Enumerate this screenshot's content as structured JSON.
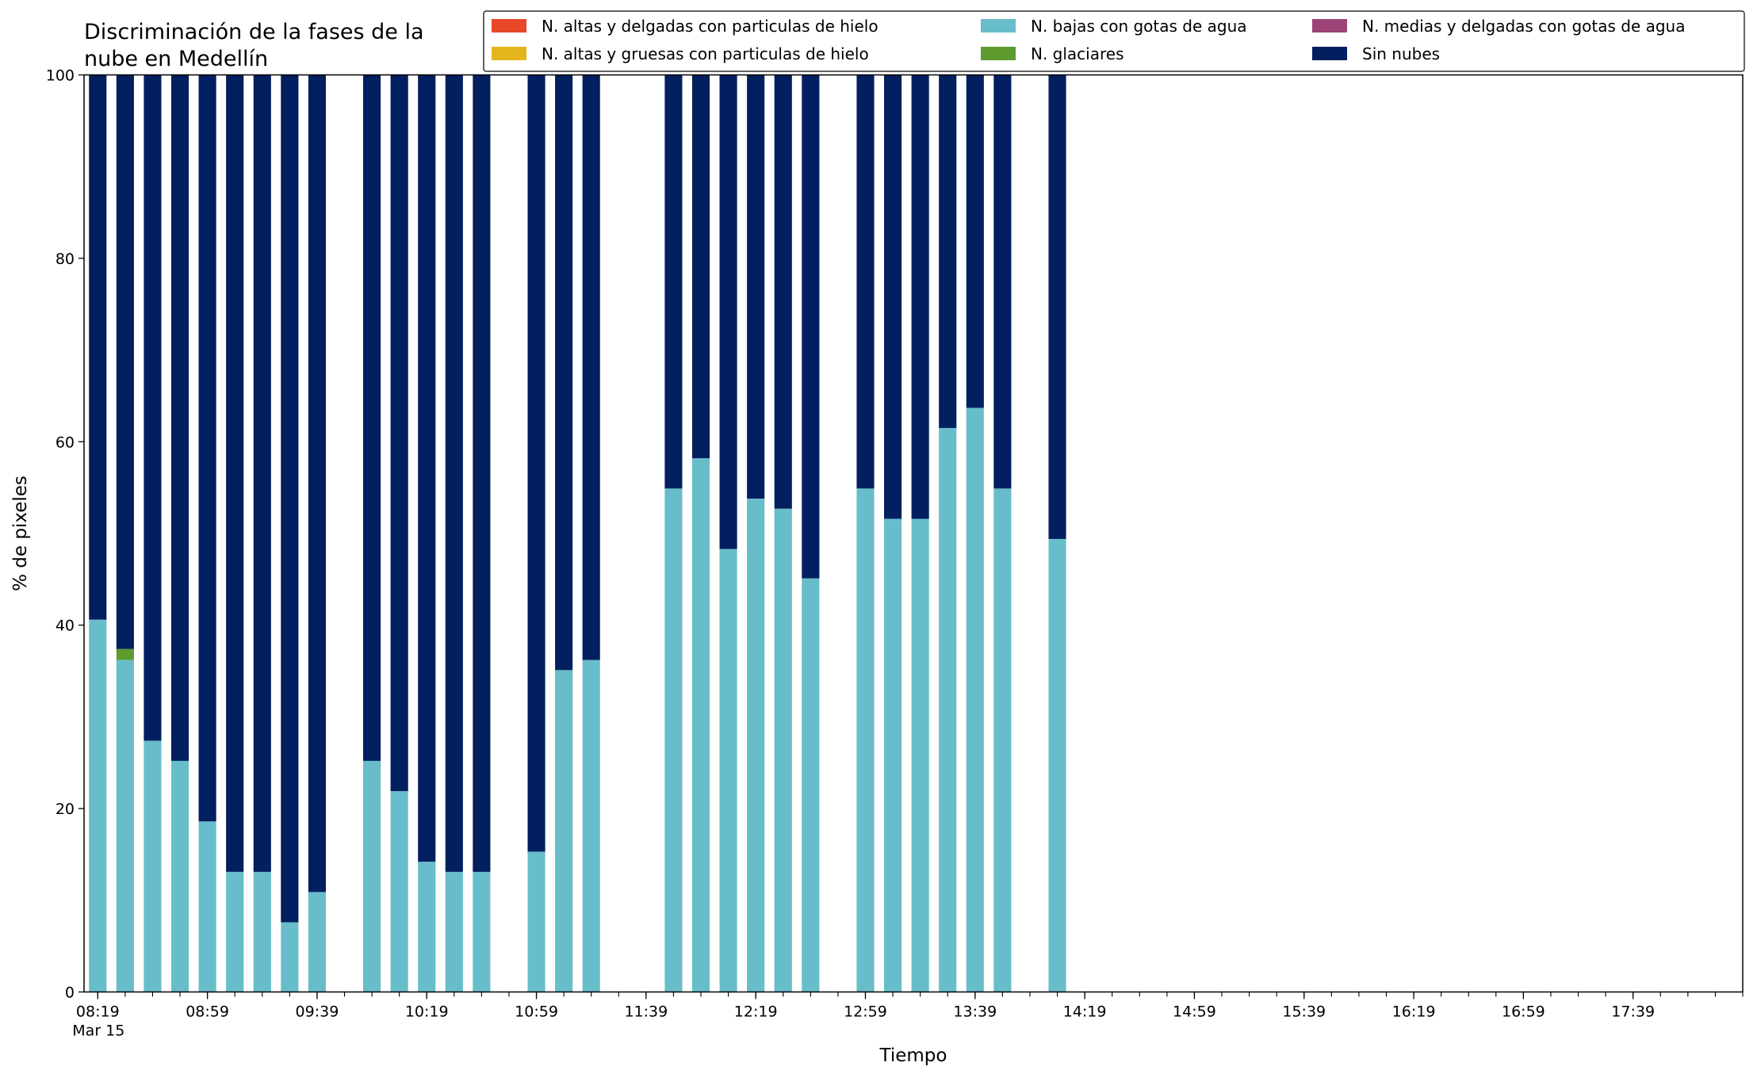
{
  "chart_data": {
    "type": "bar",
    "stacked": true,
    "title": "Discriminación de la fases de la\nnube en Medellín",
    "xlabel": "Tiempo",
    "ylabel": "% de pixeles",
    "ylim": [
      0,
      100
    ],
    "yticks": [
      0,
      20,
      40,
      60,
      80,
      100
    ],
    "xlim": [
      "08:14",
      "18:19"
    ],
    "date_label": "Mar 15",
    "xtick_labels": [
      "08:19",
      "08:59",
      "09:39",
      "10:19",
      "10:59",
      "11:39",
      "12:19",
      "12:59",
      "13:39",
      "14:19",
      "14:59",
      "15:39",
      "16:19",
      "16:59",
      "17:39"
    ],
    "legend_position": "top-right",
    "grid": false,
    "series": [
      {
        "name": "N. altas y delgadas con particulas de hielo",
        "color": "#e8472a"
      },
      {
        "name": "N. altas y gruesas con particulas de hielo",
        "color": "#e3b51b"
      },
      {
        "name": "N. bajas con gotas de agua",
        "color": "#68bdca"
      },
      {
        "name": "N. glaciares",
        "color": "#5d9b2e"
      },
      {
        "name": "N. medias y delgadas con gotas de agua",
        "color": "#9b4475"
      },
      {
        "name": "Sin nubes",
        "color": "#021f5f"
      }
    ],
    "legend_order": [
      0,
      1,
      2,
      3,
      4,
      5
    ],
    "bars": [
      {
        "time": "08:19",
        "n_bajas": 40.6,
        "n_glaciares": 0,
        "sin_nubes": 59.4
      },
      {
        "time": "08:29",
        "n_bajas": 36.2,
        "n_glaciares": 1.2,
        "sin_nubes": 62.6
      },
      {
        "time": "08:39",
        "n_bajas": 27.4,
        "n_glaciares": 0,
        "sin_nubes": 72.6
      },
      {
        "time": "08:49",
        "n_bajas": 25.2,
        "n_glaciares": 0,
        "sin_nubes": 74.8
      },
      {
        "time": "08:59",
        "n_bajas": 18.6,
        "n_glaciares": 0,
        "sin_nubes": 81.4
      },
      {
        "time": "09:09",
        "n_bajas": 13.1,
        "n_glaciares": 0,
        "sin_nubes": 86.9
      },
      {
        "time": "09:19",
        "n_bajas": 13.1,
        "n_glaciares": 0,
        "sin_nubes": 86.9
      },
      {
        "time": "09:29",
        "n_bajas": 7.6,
        "n_glaciares": 0,
        "sin_nubes": 92.4
      },
      {
        "time": "09:39",
        "n_bajas": 10.9,
        "n_glaciares": 0,
        "sin_nubes": 89.1
      },
      {
        "time": "09:59",
        "n_bajas": 25.2,
        "n_glaciares": 0,
        "sin_nubes": 74.8
      },
      {
        "time": "10:09",
        "n_bajas": 21.9,
        "n_glaciares": 0,
        "sin_nubes": 78.1
      },
      {
        "time": "10:19",
        "n_bajas": 14.2,
        "n_glaciares": 0,
        "sin_nubes": 85.8
      },
      {
        "time": "10:29",
        "n_bajas": 13.1,
        "n_glaciares": 0,
        "sin_nubes": 86.9
      },
      {
        "time": "10:39",
        "n_bajas": 13.1,
        "n_glaciares": 0,
        "sin_nubes": 86.9
      },
      {
        "time": "10:59",
        "n_bajas": 15.3,
        "n_glaciares": 0,
        "sin_nubes": 84.7
      },
      {
        "time": "11:09",
        "n_bajas": 35.1,
        "n_glaciares": 0,
        "sin_nubes": 64.9
      },
      {
        "time": "11:19",
        "n_bajas": 36.2,
        "n_glaciares": 0,
        "sin_nubes": 63.8
      },
      {
        "time": "11:49",
        "n_bajas": 54.9,
        "n_glaciares": 0,
        "sin_nubes": 45.1
      },
      {
        "time": "11:59",
        "n_bajas": 58.2,
        "n_glaciares": 0,
        "sin_nubes": 41.8
      },
      {
        "time": "12:09",
        "n_bajas": 48.3,
        "n_glaciares": 0,
        "sin_nubes": 51.7
      },
      {
        "time": "12:19",
        "n_bajas": 53.8,
        "n_glaciares": 0,
        "sin_nubes": 46.2
      },
      {
        "time": "12:29",
        "n_bajas": 52.7,
        "n_glaciares": 0,
        "sin_nubes": 47.3
      },
      {
        "time": "12:39",
        "n_bajas": 45.1,
        "n_glaciares": 0,
        "sin_nubes": 54.9
      },
      {
        "time": "12:59",
        "n_bajas": 54.9,
        "n_glaciares": 0,
        "sin_nubes": 45.1
      },
      {
        "time": "13:09",
        "n_bajas": 51.6,
        "n_glaciares": 0,
        "sin_nubes": 48.4
      },
      {
        "time": "13:19",
        "n_bajas": 51.6,
        "n_glaciares": 0,
        "sin_nubes": 48.4
      },
      {
        "time": "13:29",
        "n_bajas": 61.5,
        "n_glaciares": 0,
        "sin_nubes": 38.5
      },
      {
        "time": "13:39",
        "n_bajas": 63.7,
        "n_glaciares": 0,
        "sin_nubes": 36.3
      },
      {
        "time": "13:49",
        "n_bajas": 54.9,
        "n_glaciares": 0,
        "sin_nubes": 45.1
      },
      {
        "time": "14:09",
        "n_bajas": 49.4,
        "n_glaciares": 0,
        "sin_nubes": 50.6
      }
    ]
  }
}
